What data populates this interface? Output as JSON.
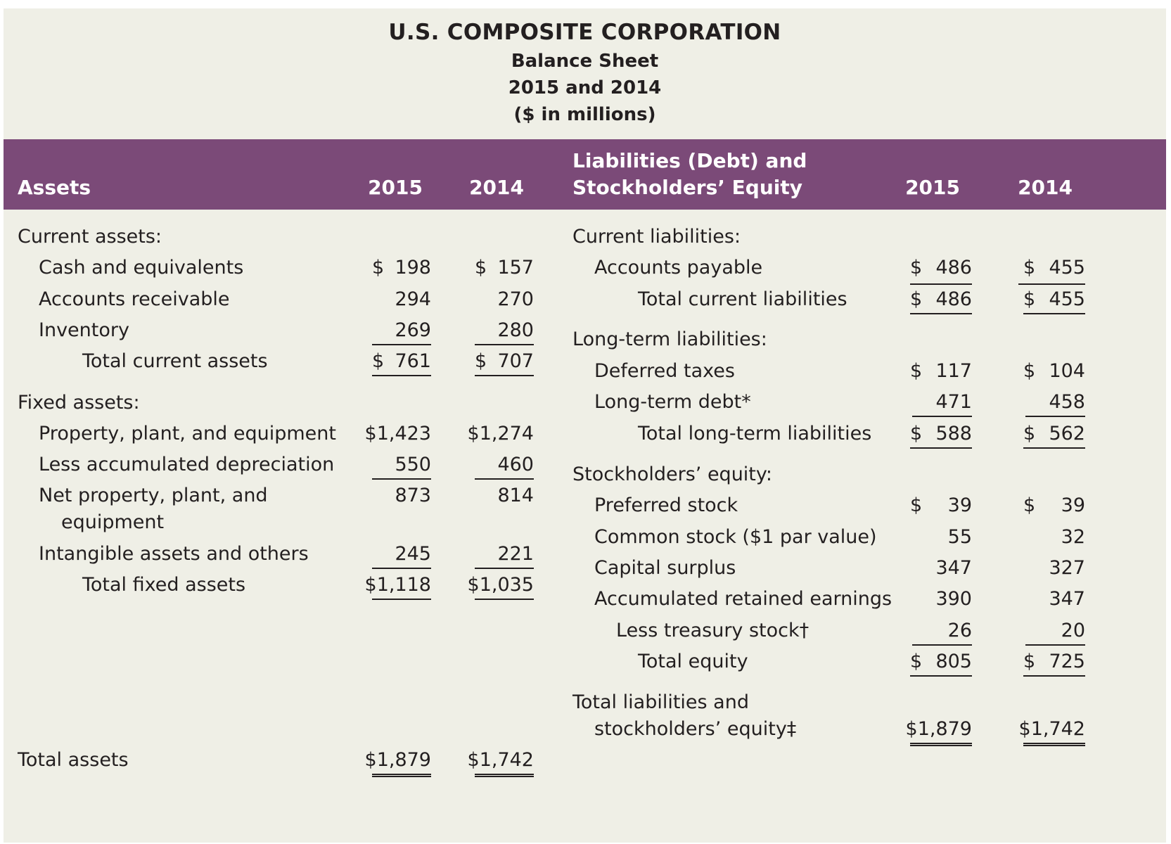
{
  "header": {
    "company": "U.S. COMPOSITE CORPORATION",
    "statement": "Balance Sheet",
    "years": "2015 and 2014",
    "units": "($ in millions)"
  },
  "columns": {
    "assets": "Assets",
    "liabilities_line1": "Liabilities (Debt) and",
    "liabilities_line2": "Stockholders’ Equity",
    "y2015": "2015",
    "y2014": "2014"
  },
  "assets": {
    "current_heading": "Current assets:",
    "cash": {
      "label": "Cash and equivalents",
      "d2015": "$",
      "v2015": "198",
      "d2014": "$",
      "v2014": "157"
    },
    "receivables": {
      "label": "Accounts receivable",
      "v2015": "294",
      "v2014": "270"
    },
    "inventory": {
      "label": "Inventory",
      "v2015": "269",
      "v2014": "280"
    },
    "total_current": {
      "label": "Total current assets",
      "d2015": "$",
      "v2015": "761",
      "d2014": "$",
      "v2014": "707"
    },
    "fixed_heading": "Fixed assets:",
    "ppe": {
      "label": "Property, plant, and equipment",
      "v2015": "$1,423",
      "v2014": "$1,274"
    },
    "depreciation": {
      "label": "Less accumulated depreciation",
      "v2015": "550",
      "v2014": "460"
    },
    "net_ppe": {
      "label_line1": "Net property, plant, and",
      "label_line2": "equipment",
      "v2015": "873",
      "v2014": "814"
    },
    "intangibles": {
      "label": "Intangible assets and others",
      "v2015": "245",
      "v2014": "221"
    },
    "total_fixed": {
      "label": "Total fixed assets",
      "v2015": "$1,118",
      "v2014": "$1,035"
    },
    "total": {
      "label": "Total assets",
      "v2015": "$1,879",
      "v2014": "$1,742"
    }
  },
  "liabilities": {
    "current_heading": "Current liabilities:",
    "payable": {
      "label": "Accounts payable",
      "d2015": "$",
      "v2015": "486",
      "d2014": "$",
      "v2014": "455"
    },
    "total_current": {
      "label": "Total current liabilities",
      "d2015": "$",
      "v2015": "486",
      "d2014": "$",
      "v2014": "455"
    },
    "longterm_heading": "Long-term liabilities:",
    "deferred_taxes": {
      "label": "Deferred taxes",
      "d2015": "$",
      "v2015": "117",
      "d2014": "$",
      "v2014": "104"
    },
    "longterm_debt": {
      "label": "Long-term debt*",
      "v2015": "471",
      "v2014": "458"
    },
    "total_longterm": {
      "label": "Total long-term liabilities",
      "d2015": "$",
      "v2015": "588",
      "d2014": "$",
      "v2014": "562"
    },
    "equity_heading": "Stockholders’ equity:",
    "preferred": {
      "label": "Preferred stock",
      "d2015": "$",
      "v2015": "39",
      "d2014": "$",
      "v2014": "39"
    },
    "common": {
      "label": "Common stock ($1 par value)",
      "v2015": "55",
      "v2014": "32"
    },
    "surplus": {
      "label": "Capital surplus",
      "v2015": "347",
      "v2014": "327"
    },
    "retained": {
      "label": "Accumulated retained earnings",
      "v2015": "390",
      "v2014": "347"
    },
    "treasury": {
      "label": "Less treasury stock†",
      "v2015": "26",
      "v2014": "20"
    },
    "total_equity": {
      "label": "Total equity",
      "d2015": "$",
      "v2015": "805",
      "d2014": "$",
      "v2014": "725"
    },
    "total": {
      "label_line1": "Total liabilities and",
      "label_line2": "stockholders’ equity‡",
      "v2015": "$1,879",
      "v2014": "$1,742"
    }
  }
}
